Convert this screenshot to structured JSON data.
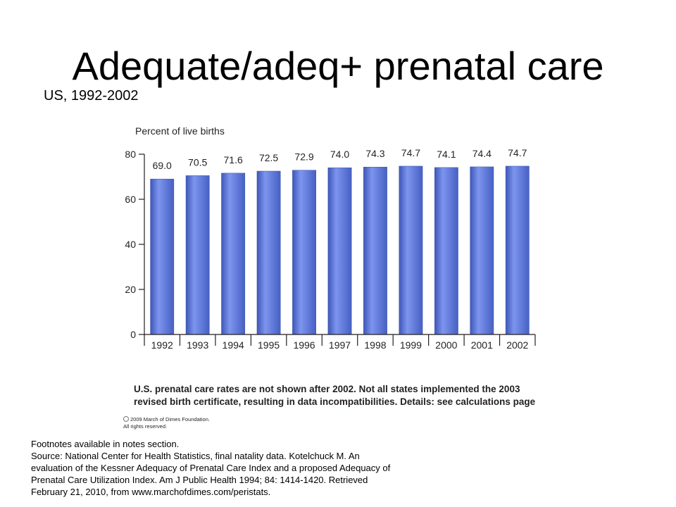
{
  "slide": {
    "title": "Adequate/adeq+ prenatal care",
    "subtitle": "US, 1992-2002"
  },
  "chart_data": {
    "type": "bar",
    "ylabel": "Percent of live births",
    "categories": [
      "1992",
      "1993",
      "1994",
      "1995",
      "1996",
      "1997",
      "1998",
      "1999",
      "2000",
      "2001",
      "2002"
    ],
    "values": [
      69.0,
      70.5,
      71.6,
      72.5,
      72.9,
      74.0,
      74.3,
      74.7,
      74.1,
      74.4,
      74.7
    ],
    "value_labels": [
      "69.0",
      "70.5",
      "71.6",
      "72.5",
      "72.9",
      "74.0",
      "74.3",
      "74.7",
      "74.1",
      "74.4",
      "74.7"
    ],
    "ylim": [
      0,
      80
    ],
    "yticks": [
      0,
      20,
      40,
      60,
      80
    ],
    "grid": false,
    "bar_color": "#5b76d6",
    "note_lines": [
      "U.S. prenatal care rates are not shown after 2002. Not all states implemented the 2003",
      "revised birth certificate, resulting in data incompatibilities. Details: see calculations page"
    ],
    "copyright_lines": [
      "2009 March of Dimes Foundation.",
      "All rights reserved."
    ]
  },
  "footnotes": {
    "lines": [
      "Footnotes available in notes section.",
      "Source: National Center for Health Statistics, final natality data. Kotelchuck M. An",
      "evaluation of the Kessner Adequacy of Prenatal Care Index and a proposed Adequacy of",
      "Prenatal Care Utilization Index.  Am J Public Health 1994; 84: 1414-1420. Retrieved",
      "February 21, 2010, from www.marchofdimes.com/peristats."
    ]
  }
}
